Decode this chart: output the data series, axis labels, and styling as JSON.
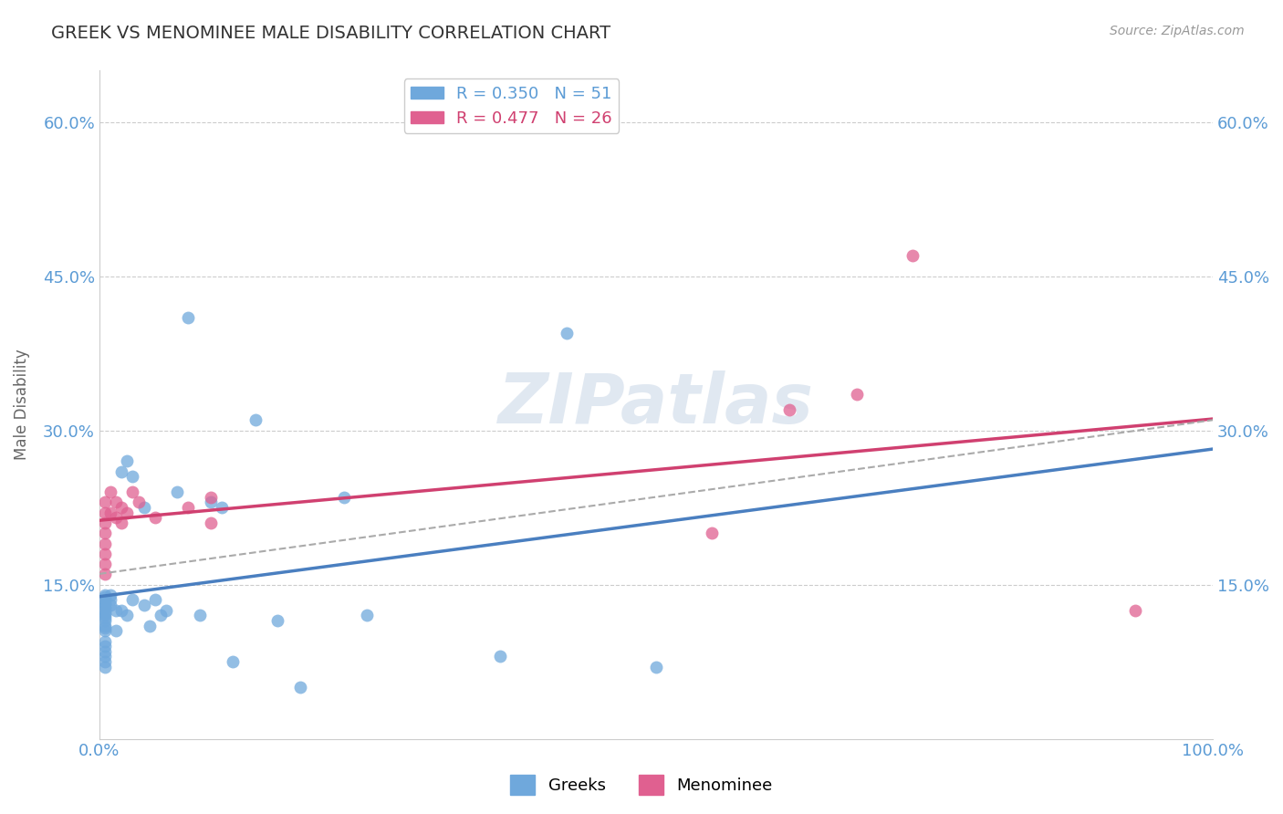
{
  "title": "GREEK VS MENOMINEE MALE DISABILITY CORRELATION CHART",
  "source": "Source: ZipAtlas.com",
  "xlabel": "",
  "ylabel": "Male Disability",
  "xlim": [
    0,
    100
  ],
  "ylim": [
    0,
    65
  ],
  "yticks": [
    0,
    15,
    30,
    45,
    60
  ],
  "ytick_labels": [
    "",
    "15.0%",
    "30.0%",
    "45.0%",
    "60.0%"
  ],
  "xticks": [
    0,
    100
  ],
  "xtick_labels": [
    "0.0%",
    "100.0%"
  ],
  "greek_color": "#6fa8dc",
  "menominee_color": "#e06090",
  "greek_line_color": "#4a7fc0",
  "menominee_line_color": "#d04070",
  "dashed_line_color": "#aaaaaa",
  "greek_R": 0.35,
  "greek_N": 51,
  "menominee_R": 0.477,
  "menominee_N": 26,
  "background_color": "#ffffff",
  "watermark": "ZIPatlas",
  "greek_x": [
    0.5,
    0.5,
    0.5,
    0.5,
    0.5,
    0.5,
    0.5,
    0.5,
    0.5,
    0.5,
    0.5,
    0.5,
    0.5,
    0.5,
    0.5,
    0.5,
    0.5,
    0.5,
    0.5,
    0.5,
    1.0,
    1.0,
    1.0,
    1.5,
    1.5,
    2.0,
    2.0,
    2.5,
    2.5,
    3.0,
    3.0,
    4.0,
    4.0,
    4.5,
    5.0,
    5.5,
    6.0,
    7.0,
    8.0,
    9.0,
    10.0,
    11.0,
    12.0,
    14.0,
    16.0,
    18.0,
    22.0,
    24.0,
    36.0,
    42.0,
    50.0
  ],
  "greek_y": [
    11.5,
    11.8,
    12.0,
    12.2,
    12.5,
    12.8,
    13.0,
    13.2,
    13.5,
    13.8,
    14.0,
    10.5,
    10.8,
    11.0,
    9.5,
    9.0,
    8.5,
    8.0,
    7.5,
    7.0,
    13.0,
    13.5,
    14.0,
    12.5,
    10.5,
    26.0,
    12.5,
    27.0,
    12.0,
    13.5,
    25.5,
    22.5,
    13.0,
    11.0,
    13.5,
    12.0,
    12.5,
    24.0,
    41.0,
    12.0,
    23.0,
    22.5,
    7.5,
    31.0,
    11.5,
    5.0,
    23.5,
    12.0,
    8.0,
    39.5,
    7.0
  ],
  "menominee_x": [
    0.5,
    0.5,
    0.5,
    0.5,
    0.5,
    0.5,
    0.5,
    0.5,
    1.0,
    1.0,
    1.5,
    1.5,
    2.0,
    2.0,
    2.5,
    3.0,
    3.5,
    5.0,
    8.0,
    10.0,
    10.0,
    55.0,
    62.0,
    68.0,
    73.0,
    93.0
  ],
  "menominee_y": [
    20.0,
    21.0,
    22.0,
    23.0,
    19.0,
    18.0,
    17.0,
    16.0,
    24.0,
    22.0,
    23.0,
    21.5,
    22.5,
    21.0,
    22.0,
    24.0,
    23.0,
    21.5,
    22.5,
    21.0,
    23.5,
    20.0,
    32.0,
    33.5,
    47.0,
    12.5
  ]
}
